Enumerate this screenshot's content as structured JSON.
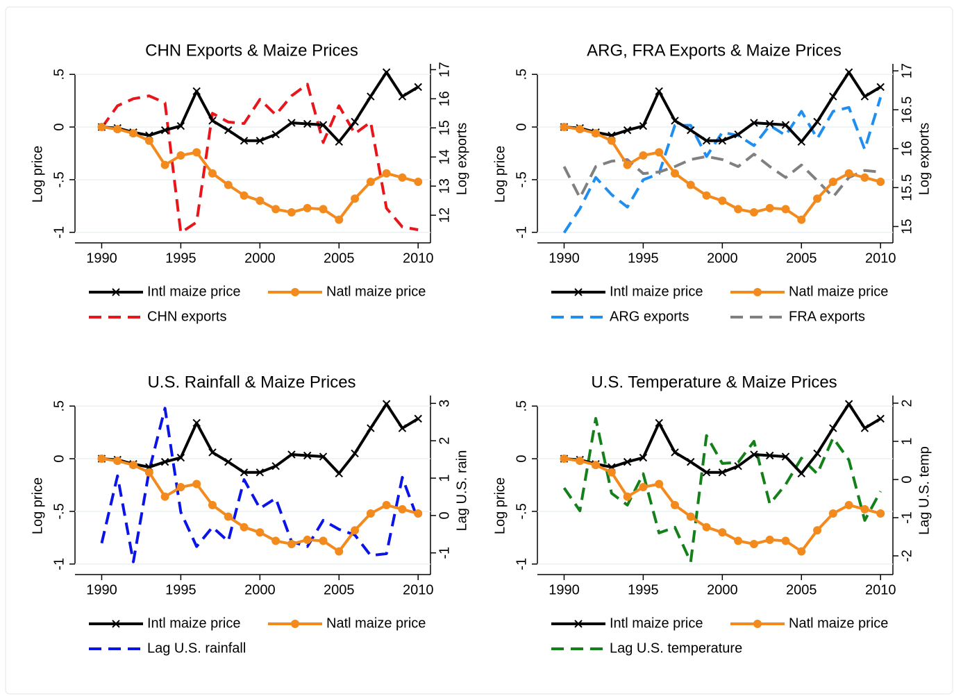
{
  "chart_data": [
    {
      "type": "line",
      "title": "CHN Exports & Maize Prices",
      "ylabel": "Log price",
      "y2label": "Log exports",
      "x": [
        1990,
        1991,
        1992,
        1993,
        1994,
        1995,
        1996,
        1997,
        1998,
        1999,
        2000,
        2001,
        2002,
        2003,
        2004,
        2005,
        2006,
        2007,
        2008,
        2009,
        2010
      ],
      "xlim": [
        1988.4,
        2011
      ],
      "xticks": [
        1990,
        1995,
        2000,
        2005,
        2010
      ],
      "ylim": [
        -1.1,
        0.6
      ],
      "yticks": [
        {
          "value": 0.5,
          "label": ".5"
        },
        0,
        {
          "value": -0.5,
          "label": "-.5"
        },
        -1
      ],
      "y2lim": [
        11.05,
        17.2
      ],
      "y2ticks": [
        12,
        13,
        14,
        15,
        16,
        17
      ],
      "series": [
        {
          "name": "Intl maize price",
          "color": "#000000",
          "style": "solid",
          "marker": "x",
          "values": [
            0,
            -0.01,
            -0.05,
            -0.08,
            -0.03,
            0.01,
            0.34,
            0.06,
            -0.03,
            -0.13,
            -0.13,
            -0.07,
            0.04,
            0.03,
            0.02,
            -0.14,
            0.05,
            0.29,
            0.52,
            0.29,
            0.38
          ]
        },
        {
          "name": "Natl maize price",
          "color": "#f28a1e",
          "style": "solid",
          "marker": "o",
          "values": [
            0,
            -0.02,
            -0.06,
            -0.13,
            -0.36,
            -0.27,
            -0.24,
            -0.44,
            -0.55,
            -0.65,
            -0.7,
            -0.78,
            -0.81,
            -0.77,
            -0.78,
            -0.88,
            -0.68,
            -0.52,
            -0.44,
            -0.48,
            -0.52
          ]
        },
        {
          "name": "CHN exports",
          "color": "#e8161b",
          "style": "dash",
          "axis": "y2",
          "values": [
            15.0,
            15.76,
            16.0,
            16.1,
            15.86,
            11.4,
            11.76,
            15.5,
            15.2,
            15.15,
            15.98,
            15.45,
            16.1,
            16.5,
            14.5,
            15.76,
            14.8,
            15.2,
            12.24,
            11.6,
            11.5
          ]
        }
      ]
    },
    {
      "type": "line",
      "title": "ARG, FRA Exports & Maize Prices",
      "ylabel": "Log price",
      "y2label": "Log exports",
      "x": [
        1990,
        1991,
        1992,
        1993,
        1994,
        1995,
        1996,
        1997,
        1998,
        1999,
        2000,
        2001,
        2002,
        2003,
        2004,
        2005,
        2006,
        2007,
        2008,
        2009,
        2010
      ],
      "xlim": [
        1988.4,
        2011
      ],
      "xticks": [
        1990,
        1995,
        2000,
        2005,
        2010
      ],
      "ylim": [
        -1.1,
        0.6
      ],
      "yticks": [
        {
          "value": 0.5,
          "label": ".5"
        },
        0,
        {
          "value": -0.5,
          "label": "-.5"
        },
        -1
      ],
      "y2lim": [
        14.79,
        17.09
      ],
      "y2ticks": [
        15,
        15.5,
        16,
        16.5,
        17
      ],
      "series": [
        {
          "name": "Intl maize price",
          "color": "#000000",
          "style": "solid",
          "marker": "x",
          "values": [
            0,
            -0.01,
            -0.05,
            -0.08,
            -0.03,
            0.01,
            0.34,
            0.06,
            -0.03,
            -0.13,
            -0.13,
            -0.07,
            0.04,
            0.03,
            0.02,
            -0.14,
            0.05,
            0.29,
            0.52,
            0.29,
            0.38
          ]
        },
        {
          "name": "Natl maize price",
          "color": "#f28a1e",
          "style": "solid",
          "marker": "o",
          "values": [
            0,
            -0.02,
            -0.06,
            -0.13,
            -0.36,
            -0.27,
            -0.24,
            -0.44,
            -0.55,
            -0.65,
            -0.7,
            -0.78,
            -0.81,
            -0.77,
            -0.78,
            -0.88,
            -0.68,
            -0.52,
            -0.44,
            -0.48,
            -0.52
          ]
        },
        {
          "name": "ARG exports",
          "color": "#1e8ff0",
          "style": "dash",
          "axis": "y2",
          "values": [
            14.92,
            15.23,
            15.63,
            15.41,
            15.25,
            15.6,
            15.68,
            16.3,
            16.3,
            15.9,
            16.21,
            16.17,
            16.04,
            16.3,
            16.17,
            16.48,
            16.13,
            16.48,
            16.53,
            15.99,
            16.66
          ]
        },
        {
          "name": "FRA exports",
          "color": "#808080",
          "style": "dash",
          "axis": "y2",
          "values": [
            15.77,
            15.37,
            15.77,
            15.84,
            15.86,
            15.68,
            15.7,
            15.77,
            15.86,
            15.9,
            15.86,
            15.77,
            15.93,
            15.77,
            15.63,
            15.79,
            15.59,
            15.38,
            15.63,
            15.72,
            15.7
          ]
        }
      ]
    },
    {
      "type": "line",
      "title": "U.S. Rainfall & Maize Prices",
      "ylabel": "Log price",
      "y2label": "Lag U.S. rain",
      "x": [
        1990,
        1991,
        1992,
        1993,
        1994,
        1995,
        1996,
        1997,
        1998,
        1999,
        2000,
        2001,
        2002,
        2003,
        2004,
        2005,
        2006,
        2007,
        2008,
        2009,
        2010
      ],
      "xlim": [
        1988.4,
        2011
      ],
      "xticks": [
        1990,
        1995,
        2000,
        2005,
        2010
      ],
      "ylim": [
        -1.1,
        0.6
      ],
      "yticks": [
        {
          "value": 0.5,
          "label": ".5"
        },
        0,
        {
          "value": -0.5,
          "label": "-.5"
        },
        -1
      ],
      "y2lim": [
        -1.58,
        3.21
      ],
      "y2ticks": [
        -1,
        0,
        1,
        2,
        3
      ],
      "series": [
        {
          "name": "Intl maize price",
          "color": "#000000",
          "style": "solid",
          "marker": "x",
          "values": [
            0,
            -0.01,
            -0.05,
            -0.08,
            -0.03,
            0.01,
            0.34,
            0.06,
            -0.03,
            -0.13,
            -0.13,
            -0.07,
            0.04,
            0.03,
            0.02,
            -0.14,
            0.05,
            0.29,
            0.52,
            0.29,
            0.38
          ]
        },
        {
          "name": "Natl maize price",
          "color": "#f28a1e",
          "style": "solid",
          "marker": "o",
          "values": [
            0,
            -0.02,
            -0.06,
            -0.13,
            -0.36,
            -0.27,
            -0.24,
            -0.44,
            -0.55,
            -0.65,
            -0.7,
            -0.78,
            -0.81,
            -0.77,
            -0.78,
            -0.88,
            -0.68,
            -0.52,
            -0.44,
            -0.48,
            -0.52
          ]
        },
        {
          "name": "Lag U.S. rainfall",
          "color": "#0a14e6",
          "style": "dash",
          "axis": "y2",
          "values": [
            -0.74,
            1.06,
            -1.24,
            1.2,
            2.87,
            0.09,
            -0.83,
            -0.31,
            -0.69,
            0.96,
            0.19,
            0.46,
            -0.7,
            -0.83,
            -0.13,
            -0.37,
            -0.52,
            -1.07,
            -1.02,
            1.02,
            -0.13
          ]
        }
      ]
    },
    {
      "type": "line",
      "title": "U.S. Temperature & Maize Prices",
      "ylabel": "Log price",
      "y2label": "Lag U.S. temp",
      "x": [
        1990,
        1991,
        1992,
        1993,
        1994,
        1995,
        1996,
        1997,
        1998,
        1999,
        2000,
        2001,
        2002,
        2003,
        2004,
        2005,
        2006,
        2007,
        2008,
        2009,
        2010
      ],
      "xlim": [
        1988.4,
        2011
      ],
      "xticks": [
        1990,
        1995,
        2000,
        2005,
        2010
      ],
      "ylim": [
        -1.1,
        0.6
      ],
      "yticks": [
        {
          "value": 0.5,
          "label": ".5"
        },
        0,
        {
          "value": -0.5,
          "label": "-.5"
        },
        -1
      ],
      "y2lim": [
        -2.49,
        2.2
      ],
      "y2ticks": [
        -2,
        -1,
        0,
        1,
        2
      ],
      "series": [
        {
          "name": "Intl maize price",
          "color": "#000000",
          "style": "solid",
          "marker": "x",
          "values": [
            0,
            -0.01,
            -0.05,
            -0.08,
            -0.03,
            0.01,
            0.34,
            0.06,
            -0.03,
            -0.13,
            -0.13,
            -0.07,
            0.04,
            0.03,
            0.02,
            -0.14,
            0.05,
            0.29,
            0.52,
            0.29,
            0.38
          ]
        },
        {
          "name": "Natl maize price",
          "color": "#f28a1e",
          "style": "solid",
          "marker": "o",
          "values": [
            0,
            -0.02,
            -0.06,
            -0.13,
            -0.36,
            -0.27,
            -0.24,
            -0.44,
            -0.55,
            -0.65,
            -0.7,
            -0.78,
            -0.81,
            -0.77,
            -0.78,
            -0.88,
            -0.68,
            -0.52,
            -0.44,
            -0.48,
            -0.52
          ]
        },
        {
          "name": "Lag U.S. temperature",
          "color": "#13801a",
          "style": "dash",
          "axis": "y2",
          "values": [
            -0.22,
            -0.82,
            1.6,
            -0.36,
            -0.67,
            0.15,
            -1.4,
            -1.25,
            -2.16,
            1.15,
            0.42,
            0.45,
            1.0,
            -0.64,
            -0.13,
            0.56,
            0.15,
            1.09,
            0.51,
            -1.07,
            -0.31
          ]
        }
      ]
    }
  ]
}
